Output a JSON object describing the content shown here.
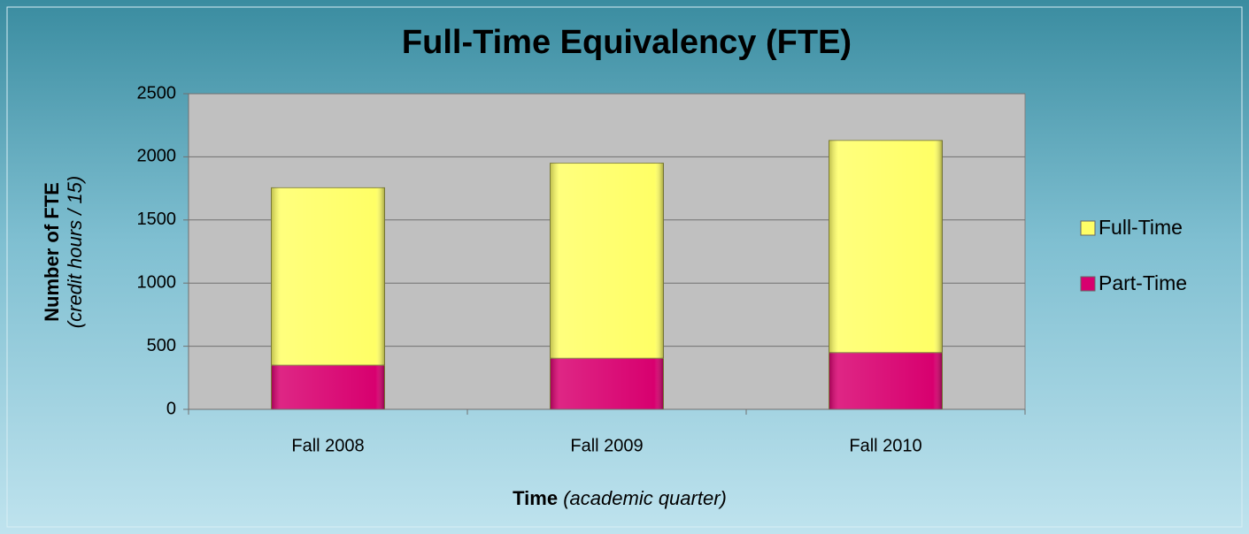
{
  "chart_data": {
    "type": "stacked_bar",
    "title": "Full-Time Equivalency (FTE)",
    "y_label": {
      "main": "Number of FTE",
      "note": "(credit hours / 15)"
    },
    "x_label": {
      "main": "Time",
      "note": "(academic quarter)"
    },
    "categories": [
      "Fall 2008",
      "Fall 2009",
      "Fall 2010"
    ],
    "series": [
      {
        "name": "Part-Time",
        "color": "#d8006f",
        "values": [
          350,
          405,
          450
        ]
      },
      {
        "name": "Full-Time",
        "color": "#ffff66",
        "values": [
          1405,
          1545,
          1680
        ]
      }
    ],
    "ylim": [
      0,
      2500
    ],
    "yticks": [
      0,
      500,
      1000,
      1500,
      2000,
      2500
    ],
    "grid": true
  }
}
